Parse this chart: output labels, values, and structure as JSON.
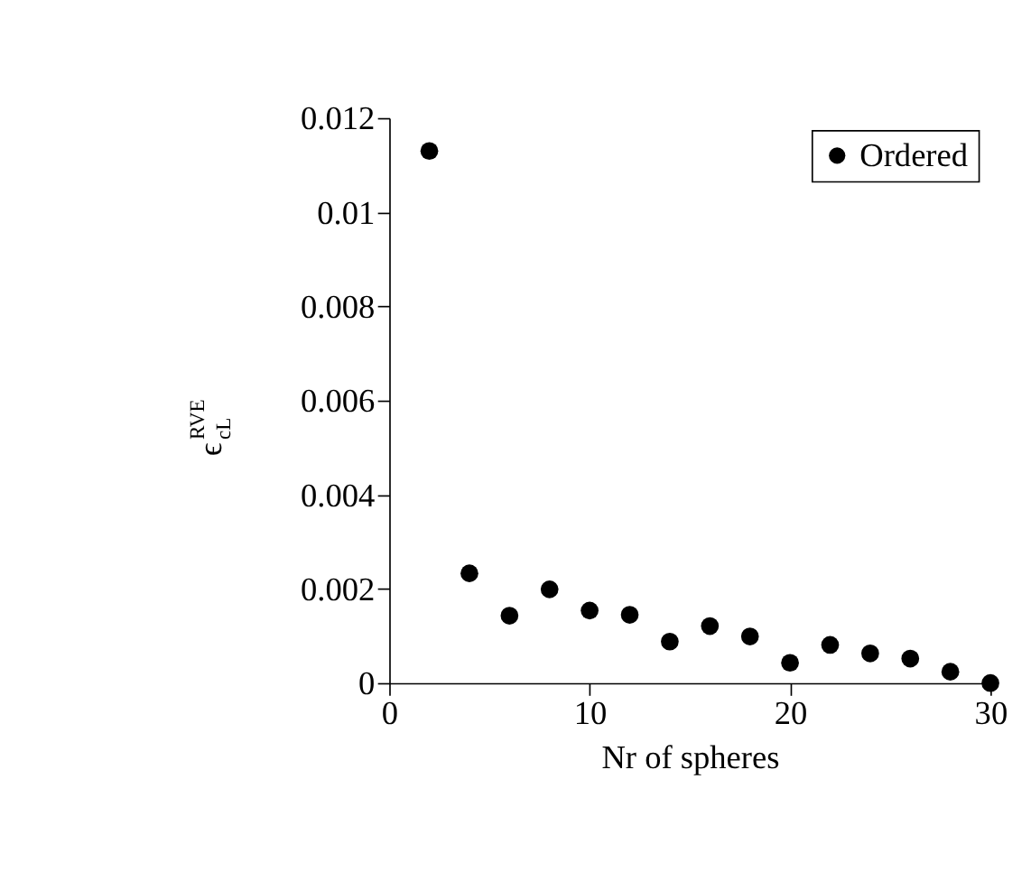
{
  "chart_data": {
    "type": "scatter",
    "xlabel": "Nr of spheres",
    "ylabel": "ϵ$_{cL}$$^{RVE}$",
    "x": [
      2,
      4,
      6,
      8,
      10,
      12,
      14,
      16,
      18,
      20,
      22,
      24,
      26,
      28,
      30
    ],
    "series": [
      {
        "name": "Ordered",
        "color": "#000000",
        "values": [
          0.0113,
          0.00233,
          0.00143,
          0.00199,
          0.00154,
          0.00145,
          0.00088,
          0.00121,
          0.00099,
          0.00043,
          0.00081,
          0.00063,
          0.00052,
          0.00024,
          0.0
        ]
      }
    ],
    "xlim": [
      0,
      30
    ],
    "xticks": [
      0,
      10,
      20,
      30
    ],
    "ylim": [
      0,
      0.012
    ],
    "yticks": [
      0,
      0.002,
      0.004,
      0.006,
      0.008,
      0.01,
      0.012
    ],
    "marker": "circle",
    "legend": "top right",
    "grid": false
  }
}
